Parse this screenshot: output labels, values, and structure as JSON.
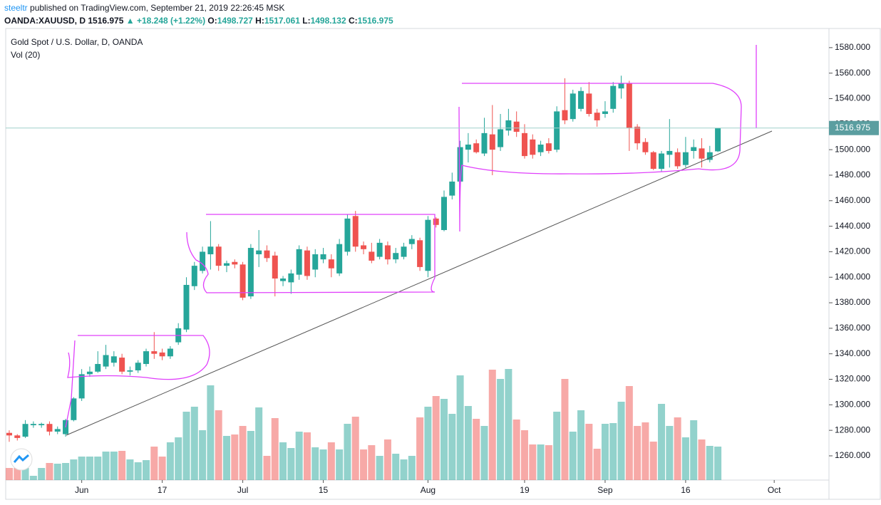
{
  "header": {
    "publisher": "steeltr",
    "published": " published on TradingView.com, September 21, 2019 22:26:45 MSK",
    "symbol": "OANDA:XAUUSD, D",
    "arrow": "▲",
    "change": "+18.248",
    "change_pct": "(+1.22%)",
    "ohlc_labels": [
      "O:",
      "H:",
      "L:",
      "C:"
    ]
  },
  "chart_data": {
    "type": "candlestick",
    "title": "Gold Spot / U.S. Dollar, D, OANDA",
    "volume_label": "Vol (20)",
    "up_color": "#26a69a",
    "down_color": "#ef5350",
    "open": [
      1278,
      1276,
      1275,
      1284,
      1284,
      1285,
      1279,
      1277,
      1288,
      1305,
      1324,
      1326,
      1330,
      1333,
      1337,
      1326,
      1327,
      1332,
      1342,
      1341,
      1338,
      1349,
      1359,
      1393,
      1405,
      1418,
      1424,
      1409,
      1412,
      1410,
      1385,
      1418,
      1421,
      1417,
      1397,
      1396,
      1402,
      1421,
      1406,
      1414,
      1414,
      1403,
      1420,
      1448,
      1425,
      1420,
      1416,
      1425,
      1414,
      1416,
      1426,
      1429,
      1405,
      1446,
      1437,
      1464,
      1475,
      1500,
      1505,
      1497,
      1512,
      1502,
      1515,
      1522,
      1513,
      1508,
      1498,
      1505,
      1500,
      1531,
      1524,
      1532,
      1544,
      1529,
      1528,
      1532,
      1548,
      1552,
      1518,
      1506,
      1498,
      1485,
      1496,
      1498,
      1488,
      1499,
      1501,
      1492,
      1498.727
    ],
    "high": [
      1280,
      1277,
      1288,
      1287,
      1286,
      1287,
      1283,
      1289,
      1306,
      1328,
      1330,
      1342,
      1347,
      1342,
      1340,
      1330,
      1335,
      1344,
      1357,
      1344,
      1346,
      1364,
      1400,
      1412,
      1424,
      1444,
      1426,
      1413,
      1414,
      1412,
      1426,
      1437,
      1425,
      1420,
      1401,
      1406,
      1425,
      1424,
      1422,
      1423,
      1418,
      1430,
      1449,
      1452,
      1428,
      1427,
      1430,
      1428,
      1423,
      1427,
      1433,
      1431,
      1448,
      1447,
      1468,
      1482,
      1507,
      1513,
      1508,
      1525,
      1535,
      1528,
      1532,
      1530,
      1520,
      1512,
      1507,
      1509,
      1534,
      1556,
      1547,
      1549,
      1553,
      1532,
      1538,
      1553,
      1558,
      1554,
      1520,
      1509,
      1499,
      1499,
      1524,
      1501,
      1510,
      1508,
      1509,
      1503,
      1517.061
    ],
    "low": [
      1271,
      1272,
      1274,
      1282,
      1282,
      1276,
      1277,
      1275,
      1287,
      1303,
      1322,
      1325,
      1328,
      1330,
      1324,
      1323,
      1325,
      1330,
      1336,
      1335,
      1336,
      1347,
      1357,
      1390,
      1403,
      1406,
      1405,
      1404,
      1407,
      1382,
      1383,
      1408,
      1412,
      1385,
      1393,
      1387,
      1398,
      1398,
      1400,
      1411,
      1400,
      1401,
      1417,
      1420,
      1418,
      1411,
      1414,
      1410,
      1411,
      1414,
      1422,
      1405,
      1400,
      1439,
      1436,
      1461,
      1473,
      1490,
      1497,
      1495,
      1480,
      1499,
      1511,
      1510,
      1493,
      1493,
      1495,
      1497,
      1498,
      1520,
      1522,
      1530,
      1526,
      1518,
      1525,
      1529,
      1540,
      1499,
      1500,
      1496,
      1484,
      1483,
      1486,
      1485,
      1486,
      1493,
      1486,
      1490,
      1498.132
    ],
    "close": [
      1276,
      1274,
      1285,
      1285,
      1285,
      1279,
      1281,
      1288,
      1305,
      1324,
      1326,
      1332,
      1339,
      1338,
      1326,
      1327,
      1333,
      1342,
      1340,
      1338,
      1344,
      1360,
      1394,
      1409,
      1420,
      1424,
      1409,
      1411,
      1410,
      1384,
      1423,
      1421,
      1415,
      1399,
      1399,
      1403,
      1422,
      1401,
      1418,
      1418,
      1407,
      1426,
      1446,
      1424,
      1422,
      1413,
      1427,
      1414,
      1419,
      1424,
      1430,
      1408,
      1445,
      1441,
      1463,
      1475,
      1502,
      1504,
      1498,
      1513,
      1500,
      1516,
      1523,
      1514,
      1495,
      1496,
      1504,
      1499,
      1530,
      1523,
      1544,
      1546,
      1528,
      1523,
      1530,
      1550,
      1552,
      1517,
      1505,
      1498,
      1485,
      1497,
      1499,
      1487,
      1498,
      1502,
      1493,
      1498,
      1516.975
    ],
    "volume": [
      17,
      17,
      17,
      6,
      17,
      24,
      23,
      24,
      29,
      33,
      33,
      33,
      40,
      40,
      41,
      29,
      25,
      28,
      47,
      33,
      53,
      60,
      96,
      103,
      70,
      133,
      98,
      62,
      64,
      76,
      69,
      102,
      34,
      87,
      53,
      45,
      68,
      67,
      46,
      43,
      53,
      43,
      79,
      89,
      43,
      49,
      34,
      57,
      37,
      29,
      34,
      88,
      103,
      118,
      114,
      93,
      147,
      104,
      86,
      76,
      155,
      142,
      156,
      85,
      70,
      50,
      50,
      49,
      96,
      142,
      68,
      98,
      79,
      44,
      79,
      80,
      110,
      132,
      76,
      81,
      54,
      107,
      76,
      88,
      60,
      84,
      57,
      48,
      47
    ],
    "volume_lim": [
      0,
      200
    ],
    "xlim": [
      -0.44,
      101.8
    ],
    "xticks": [
      {
        "value": 9,
        "label": "Jun"
      },
      {
        "value": 19,
        "label": "17"
      },
      {
        "value": 29,
        "label": "Jul"
      },
      {
        "value": 39,
        "label": "15"
      },
      {
        "value": 52,
        "label": "Aug"
      },
      {
        "value": 64,
        "label": "19"
      },
      {
        "value": 74,
        "label": "Sep"
      },
      {
        "value": 84,
        "label": "16"
      },
      {
        "value": 95,
        "label": "Oct"
      }
    ],
    "ylim": [
      1241,
      1595
    ],
    "yticks": [
      {
        "value": 1260,
        "label": "1260.000"
      },
      {
        "value": 1280,
        "label": "1280.000"
      },
      {
        "value": 1300,
        "label": "1300.000"
      },
      {
        "value": 1320,
        "label": "1320.000"
      },
      {
        "value": 1340,
        "label": "1340.000"
      },
      {
        "value": 1360,
        "label": "1360.000"
      },
      {
        "value": 1380,
        "label": "1380.000"
      },
      {
        "value": 1400,
        "label": "1400.000"
      },
      {
        "value": 1420,
        "label": "1420.000"
      },
      {
        "value": 1440,
        "label": "1440.000"
      },
      {
        "value": 1460,
        "label": "1460.000"
      },
      {
        "value": 1480,
        "label": "1480.000"
      },
      {
        "value": 1500,
        "label": "1500.000"
      },
      {
        "value": 1520,
        "label": "1520.000"
      },
      {
        "value": 1540,
        "label": "1540.000"
      },
      {
        "value": 1560,
        "label": "1560.000"
      },
      {
        "value": 1580,
        "label": "1580.000"
      }
    ]
  }
}
